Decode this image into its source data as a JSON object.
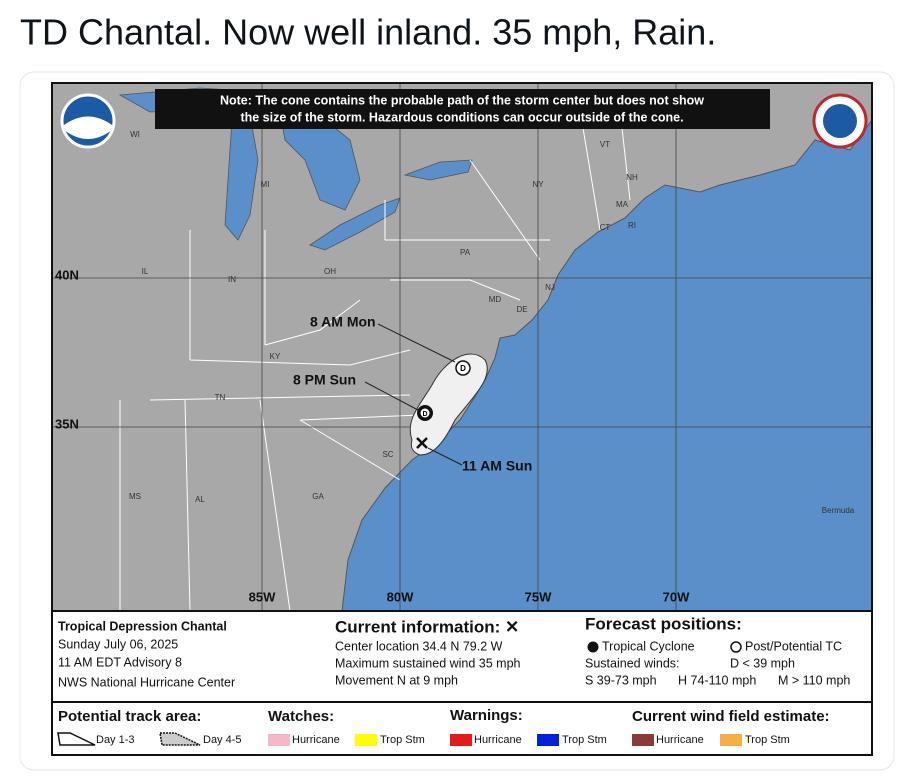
{
  "post": {
    "text": "TD Chantal. Now well inland. 35 mph, Rain."
  },
  "map": {
    "note": [
      "Note: The cone contains the probable path of the storm center but does not show",
      "the size of the storm. Hazardous conditions can occur outside of the cone."
    ],
    "grid_labels": [
      "40N",
      "35N",
      "85W",
      "80W",
      "75W",
      "70W"
    ],
    "place_labels": [
      "WI",
      "MI",
      "IL",
      "IN",
      "OH",
      "KY",
      "TN",
      "MS",
      "AL",
      "GA",
      "SC",
      "PA",
      "NY",
      "VT",
      "NH",
      "MA",
      "CT",
      "RI",
      "NJ",
      "MD",
      "DE",
      "Bermuda"
    ],
    "track_labels": [
      "8 AM Mon",
      "8 PM Sun",
      "11 AM Sun"
    ],
    "markers": [
      "D",
      "D"
    ]
  },
  "info": {
    "storm": [
      "Tropical Depression Chantal",
      "Sunday July 06, 2025",
      "11 AM EDT Advisory 8",
      "NWS National Hurricane Center"
    ],
    "current_title": "Current information: ✕",
    "current": [
      "Center location 34.4 N 79.2 W",
      "Maximum sustained wind 35 mph",
      "Movement N at 9 mph"
    ],
    "forecast_title": "Forecast positions:",
    "forecast": [
      "Tropical Cyclone",
      "Post/Potential TC",
      "Sustained winds:",
      "D < 39 mph",
      "S 39-73 mph",
      "H 74-110 mph",
      "M > 110 mph"
    ]
  },
  "legend": {
    "headings": [
      "Potential track area:",
      "Watches:",
      "Warnings:",
      "Current wind field estimate:"
    ],
    "items": [
      "Day 1-3",
      "Day 4-5",
      "Hurricane",
      "Trop Stm",
      "Hurricane",
      "Trop Stm",
      "Hurricane",
      "Trop Stm"
    ]
  }
}
